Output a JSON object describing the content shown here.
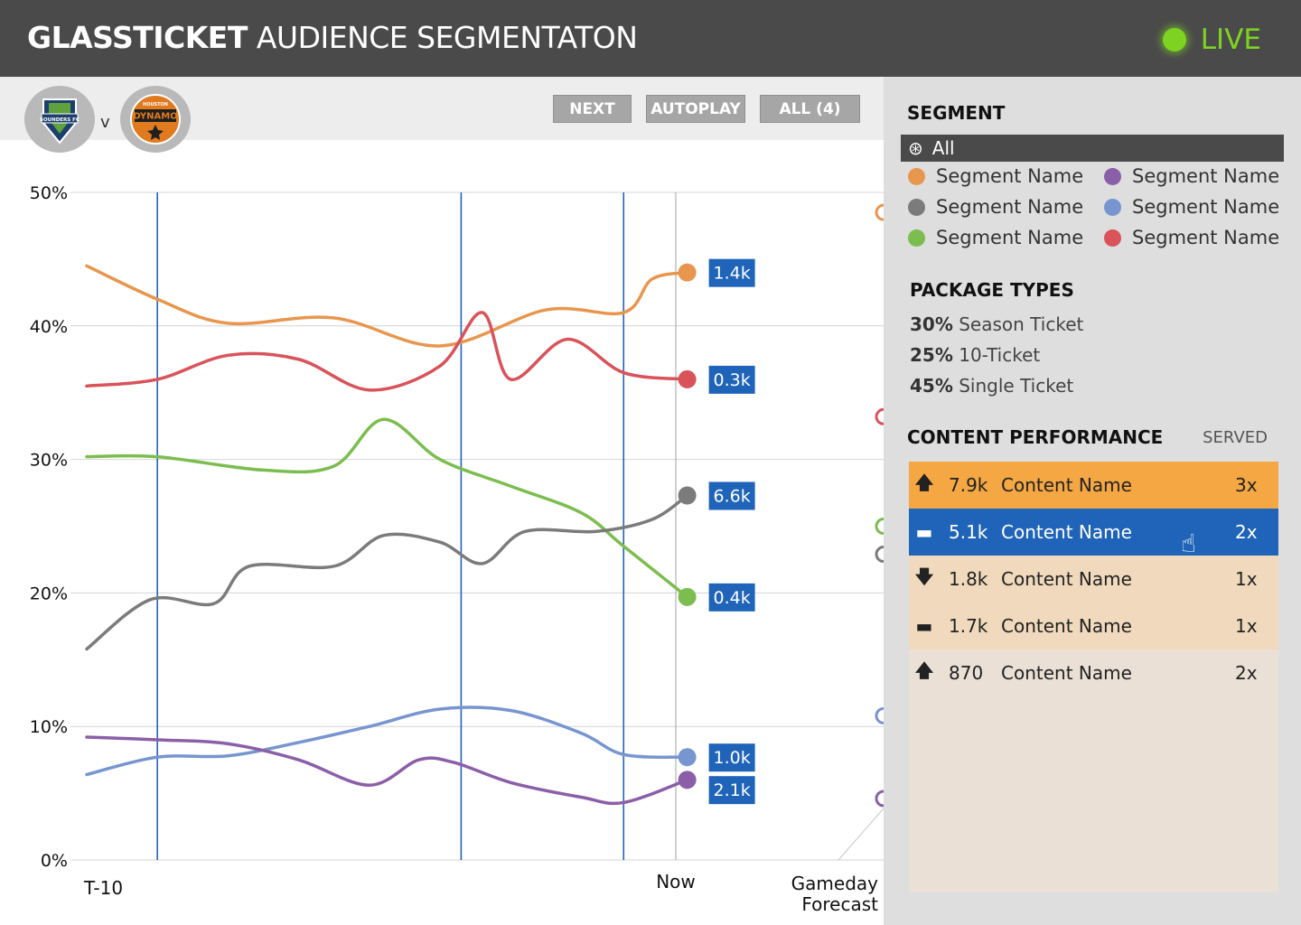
{
  "header": {
    "title_bold": "GLASSTICKET",
    "title_rest": "AUDIENCE SEGMENTATON",
    "status": "LIVE",
    "status_color": "#7ed321"
  },
  "match": {
    "home_team": "SOUNDERS FC",
    "vs": "v",
    "away_team": "DYNAMO",
    "away_team_city": "HOUSTON"
  },
  "controls": {
    "next_label": "NEXT",
    "autoplay_label": "AUTOPLAY",
    "all_label": "ALL (4)"
  },
  "sidebar": {
    "segment_title": "SEGMENT",
    "segment_all_label": "All",
    "segments": [
      {
        "name": "Segment Name",
        "color": "#e8964e"
      },
      {
        "name": "Segment Name",
        "color": "#8b5fa8"
      },
      {
        "name": "Segment Name",
        "color": "#7b7b7b"
      },
      {
        "name": "Segment Name",
        "color": "#7795cf"
      },
      {
        "name": "Segment Name",
        "color": "#7cbd4f"
      },
      {
        "name": "Segment Name",
        "color": "#d9535a"
      }
    ],
    "package_title": "PACKAGE TYPES",
    "packages": [
      {
        "pct": "30%",
        "label": "Season Ticket"
      },
      {
        "pct": "25%",
        "label": "10-Ticket"
      },
      {
        "pct": "45%",
        "label": "Single Ticket"
      }
    ],
    "content_title": "CONTENT PERFORMANCE",
    "served_label": "SERVED",
    "content_rows": [
      {
        "trend": "up",
        "trend_glyph": "🡅",
        "value": "7.9k",
        "name": "Content Name",
        "served": "3x",
        "bg": "#f4a742",
        "text_color": "#222"
      },
      {
        "trend": "flat",
        "trend_glyph": "▬",
        "value": "5.1k",
        "name": "Content Name",
        "served": "2x",
        "bg": "#1f64b8",
        "text_color": "#fff"
      },
      {
        "trend": "down",
        "trend_glyph": "🡇",
        "value": "1.8k",
        "name": "Content Name",
        "served": "1x",
        "bg": "#f0d9bc",
        "text_color": "#222"
      },
      {
        "trend": "flat",
        "trend_glyph": "▬",
        "value": "1.7k",
        "name": "Content Name",
        "served": "1x",
        "bg": "#f0d9bc",
        "text_color": "#222"
      },
      {
        "trend": "up",
        "trend_glyph": "🡅",
        "value": "870",
        "name": "Content Name",
        "served": "2x",
        "bg": "#eae0d5",
        "text_color": "#222"
      }
    ]
  },
  "chart_data": {
    "type": "line",
    "ylim": [
      0,
      50
    ],
    "y_ticks": [
      "0%",
      "10%",
      "20%",
      "30%",
      "40%",
      "50%"
    ],
    "x_labels": {
      "start": "T-10",
      "now": "Now",
      "end": "Gameday",
      "end_sub": "Forecast"
    },
    "marker_lines_x": [
      1.0,
      5.3,
      7.6
    ],
    "now_x": 8.5,
    "x_range": [
      0,
      11.6
    ],
    "series": [
      {
        "color": "#e8964e",
        "label": "1.4k",
        "forecast": 48.5,
        "points": [
          [
            0,
            44.5
          ],
          [
            1,
            42
          ],
          [
            2,
            40.2
          ],
          [
            3.5,
            40.6
          ],
          [
            5,
            38.5
          ],
          [
            6.5,
            41.2
          ],
          [
            7.6,
            41
          ],
          [
            8,
            43.5
          ],
          [
            8.5,
            44
          ]
        ]
      },
      {
        "color": "#d9535a",
        "label": "0.3k",
        "forecast": 33.2,
        "points": [
          [
            0,
            35.5
          ],
          [
            1,
            36
          ],
          [
            2,
            37.8
          ],
          [
            3,
            37.5
          ],
          [
            4,
            35.2
          ],
          [
            5,
            37
          ],
          [
            5.6,
            41
          ],
          [
            6,
            36
          ],
          [
            6.8,
            39
          ],
          [
            7.6,
            36.5
          ],
          [
            8.5,
            36
          ]
        ]
      },
      {
        "color": "#7cbd4f",
        "label": "0.4k",
        "forecast": 25,
        "points": [
          [
            0,
            30.2
          ],
          [
            1,
            30.2
          ],
          [
            2.5,
            29.2
          ],
          [
            3.5,
            29.5
          ],
          [
            4.2,
            33
          ],
          [
            5,
            30
          ],
          [
            6,
            28
          ],
          [
            7,
            26
          ],
          [
            7.6,
            23.5
          ],
          [
            8.5,
            19.7
          ]
        ]
      },
      {
        "color": "#7b7b7b",
        "label": "6.6k",
        "forecast": 22.9,
        "points": [
          [
            0,
            15.8
          ],
          [
            0.9,
            19.5
          ],
          [
            1.8,
            19.2
          ],
          [
            2.3,
            22
          ],
          [
            3.5,
            22
          ],
          [
            4.2,
            24.3
          ],
          [
            5,
            23.8
          ],
          [
            5.6,
            22.2
          ],
          [
            6.2,
            24.6
          ],
          [
            7.2,
            24.6
          ],
          [
            8,
            25.5
          ],
          [
            8.5,
            27.3
          ]
        ]
      },
      {
        "color": "#7795cf",
        "label": "1.0k",
        "forecast": 10.8,
        "points": [
          [
            0,
            6.4
          ],
          [
            1,
            7.7
          ],
          [
            2,
            7.8
          ],
          [
            3,
            8.8
          ],
          [
            4,
            10
          ],
          [
            5,
            11.3
          ],
          [
            6,
            11.2
          ],
          [
            7,
            9.5
          ],
          [
            7.6,
            7.9
          ],
          [
            8.5,
            7.7
          ]
        ]
      },
      {
        "color": "#8b5fa8",
        "label": "2.1k",
        "forecast": 4.6,
        "points": [
          [
            0,
            9.2
          ],
          [
            1,
            9
          ],
          [
            2,
            8.7
          ],
          [
            3,
            7.5
          ],
          [
            4,
            5.6
          ],
          [
            4.7,
            7.5
          ],
          [
            5.2,
            7.3
          ],
          [
            6,
            5.8
          ],
          [
            7,
            4.7
          ],
          [
            7.6,
            4.3
          ],
          [
            8.5,
            6
          ]
        ]
      }
    ]
  }
}
